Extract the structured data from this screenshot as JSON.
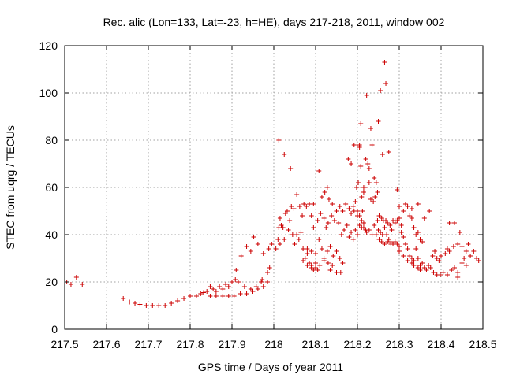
{
  "chart_data": {
    "type": "scatter",
    "title": "Rec. alic (Lon=133, Lat=-23, h=HE), days 217-218, 2011, window 002",
    "xlabel": "GPS time / Days of year 2011",
    "ylabel": "STEC from uqrg / TECUs",
    "xlim": [
      217.5,
      218.5
    ],
    "ylim": [
      0,
      120
    ],
    "xticks": [
      "217.5",
      "217.6",
      "217.7",
      "217.8",
      "217.9",
      "218",
      "218.1",
      "218.2",
      "218.3",
      "218.4",
      "218.5"
    ],
    "yticks": [
      "0",
      "20",
      "40",
      "60",
      "80",
      "100",
      "120"
    ],
    "grid": true,
    "marker": "+",
    "marker_color": "#cc0000",
    "points": [
      [
        217.505,
        20
      ],
      [
        217.515,
        19
      ],
      [
        217.528,
        22
      ],
      [
        217.542,
        19
      ],
      [
        217.64,
        13
      ],
      [
        217.655,
        11.5
      ],
      [
        217.668,
        11
      ],
      [
        217.68,
        10.5
      ],
      [
        217.695,
        10
      ],
      [
        217.71,
        10
      ],
      [
        217.725,
        10
      ],
      [
        217.74,
        10
      ],
      [
        217.755,
        11
      ],
      [
        217.77,
        12
      ],
      [
        217.785,
        13
      ],
      [
        217.8,
        14
      ],
      [
        217.815,
        14
      ],
      [
        217.825,
        15
      ],
      [
        217.832,
        15.5
      ],
      [
        217.84,
        16
      ],
      [
        217.848,
        18
      ],
      [
        217.855,
        17
      ],
      [
        217.862,
        16
      ],
      [
        217.87,
        18
      ],
      [
        217.878,
        17
      ],
      [
        217.885,
        19
      ],
      [
        217.892,
        18
      ],
      [
        217.9,
        20
      ],
      [
        217.908,
        21
      ],
      [
        217.915,
        20
      ],
      [
        217.848,
        14
      ],
      [
        217.862,
        14
      ],
      [
        217.878,
        14
      ],
      [
        217.892,
        14
      ],
      [
        217.905,
        14
      ],
      [
        217.92,
        15
      ],
      [
        217.935,
        15
      ],
      [
        217.95,
        16
      ],
      [
        217.962,
        17
      ],
      [
        217.975,
        18
      ],
      [
        217.985,
        20
      ],
      [
        217.93,
        18
      ],
      [
        217.945,
        17
      ],
      [
        217.958,
        18
      ],
      [
        217.972,
        21
      ],
      [
        217.985,
        24
      ],
      [
        217.91,
        25
      ],
      [
        217.922,
        31
      ],
      [
        217.935,
        35
      ],
      [
        217.945,
        33
      ],
      [
        217.952,
        39
      ],
      [
        217.962,
        36
      ],
      [
        217.975,
        32
      ],
      [
        217.988,
        34
      ],
      [
        217.995,
        36
      ],
      [
        217.97,
        20
      ],
      [
        217.99,
        26
      ],
      [
        218.005,
        34
      ],
      [
        218.01,
        38
      ],
      [
        218.012,
        43
      ],
      [
        218.015,
        47
      ],
      [
        218.018,
        44
      ],
      [
        218.022,
        43
      ],
      [
        218.028,
        49
      ],
      [
        218.032,
        50
      ],
      [
        218.038,
        46
      ],
      [
        218.042,
        52
      ],
      [
        218.048,
        51
      ],
      [
        218.055,
        57
      ],
      [
        218.062,
        52
      ],
      [
        218.068,
        48
      ],
      [
        218.072,
        53
      ],
      [
        218.078,
        52
      ],
      [
        218.085,
        53
      ],
      [
        218.09,
        48
      ],
      [
        218.095,
        53
      ],
      [
        218.012,
        80
      ],
      [
        218.025,
        74
      ],
      [
        218.04,
        68
      ],
      [
        218.015,
        36
      ],
      [
        218.025,
        38
      ],
      [
        218.035,
        42
      ],
      [
        218.045,
        40
      ],
      [
        218.05,
        36
      ],
      [
        218.055,
        40
      ],
      [
        218.06,
        38
      ],
      [
        218.065,
        41
      ],
      [
        218.07,
        34
      ],
      [
        218.075,
        30
      ],
      [
        218.08,
        32
      ],
      [
        218.085,
        28
      ],
      [
        218.09,
        26
      ],
      [
        218.095,
        25
      ],
      [
        218.1,
        26
      ],
      [
        218.105,
        25
      ],
      [
        218.07,
        29
      ],
      [
        218.08,
        27
      ],
      [
        218.09,
        27
      ],
      [
        218.1,
        28
      ],
      [
        218.11,
        27
      ],
      [
        218.12,
        29
      ],
      [
        218.13,
        28
      ],
      [
        218.135,
        25
      ],
      [
        218.14,
        27
      ],
      [
        218.15,
        24
      ],
      [
        218.16,
        24
      ],
      [
        218.08,
        34
      ],
      [
        218.09,
        33
      ],
      [
        218.1,
        32
      ],
      [
        218.108,
        38
      ],
      [
        218.115,
        34
      ],
      [
        218.12,
        30
      ],
      [
        218.128,
        33
      ],
      [
        218.135,
        35
      ],
      [
        218.142,
        31
      ],
      [
        218.15,
        33
      ],
      [
        218.158,
        30
      ],
      [
        218.165,
        28
      ],
      [
        218.095,
        43
      ],
      [
        218.105,
        46
      ],
      [
        218.112,
        49
      ],
      [
        218.12,
        47
      ],
      [
        218.125,
        43
      ],
      [
        218.13,
        45
      ],
      [
        218.138,
        48
      ],
      [
        218.145,
        46
      ],
      [
        218.15,
        50
      ],
      [
        218.158,
        52
      ],
      [
        218.165,
        50
      ],
      [
        218.172,
        53
      ],
      [
        218.18,
        51
      ],
      [
        218.185,
        49
      ],
      [
        218.19,
        52
      ],
      [
        218.195,
        54
      ],
      [
        218.2,
        50
      ],
      [
        218.205,
        48
      ],
      [
        218.21,
        46
      ],
      [
        218.108,
        67
      ],
      [
        218.115,
        56
      ],
      [
        218.122,
        58
      ],
      [
        218.128,
        60
      ],
      [
        218.132,
        55
      ],
      [
        218.14,
        53
      ],
      [
        218.155,
        45
      ],
      [
        218.162,
        40
      ],
      [
        218.168,
        42
      ],
      [
        218.175,
        44
      ],
      [
        218.18,
        39
      ],
      [
        218.185,
        41
      ],
      [
        218.19,
        38
      ],
      [
        218.195,
        42
      ],
      [
        218.2,
        40
      ],
      [
        218.205,
        44
      ],
      [
        218.21,
        43
      ],
      [
        218.215,
        45
      ],
      [
        218.22,
        42
      ],
      [
        218.178,
        72
      ],
      [
        218.185,
        70
      ],
      [
        218.192,
        78
      ],
      [
        218.198,
        60
      ],
      [
        218.202,
        62
      ],
      [
        218.205,
        77
      ],
      [
        218.208,
        69
      ],
      [
        218.21,
        56
      ],
      [
        218.215,
        58
      ],
      [
        218.218,
        60
      ],
      [
        218.22,
        72
      ],
      [
        218.225,
        70
      ],
      [
        218.228,
        62
      ],
      [
        218.232,
        85
      ],
      [
        218.235,
        78
      ],
      [
        218.24,
        64
      ],
      [
        218.245,
        62
      ],
      [
        218.248,
        58
      ],
      [
        218.25,
        88
      ],
      [
        218.255,
        101
      ],
      [
        218.26,
        74
      ],
      [
        218.265,
        113
      ],
      [
        218.268,
        104
      ],
      [
        218.275,
        75
      ],
      [
        218.192,
        50
      ],
      [
        218.2,
        48
      ],
      [
        218.205,
        78
      ],
      [
        218.208,
        87
      ],
      [
        218.212,
        50
      ],
      [
        218.215,
        60
      ],
      [
        218.222,
        99
      ],
      [
        218.228,
        68
      ],
      [
        218.232,
        55
      ],
      [
        218.238,
        54
      ],
      [
        218.242,
        56
      ],
      [
        218.248,
        46
      ],
      [
        218.252,
        48
      ],
      [
        218.258,
        47
      ],
      [
        218.262,
        46
      ],
      [
        218.268,
        46
      ],
      [
        218.272,
        45
      ],
      [
        218.278,
        44
      ],
      [
        218.285,
        46
      ],
      [
        218.29,
        46
      ],
      [
        218.215,
        43
      ],
      [
        218.222,
        41
      ],
      [
        218.228,
        42
      ],
      [
        218.235,
        40
      ],
      [
        218.24,
        44
      ],
      [
        218.245,
        40
      ],
      [
        218.25,
        42
      ],
      [
        218.255,
        41
      ],
      [
        218.26,
        40
      ],
      [
        218.265,
        43
      ],
      [
        218.27,
        40
      ],
      [
        218.275,
        38
      ],
      [
        218.28,
        37
      ],
      [
        218.285,
        36
      ],
      [
        218.29,
        37
      ],
      [
        218.295,
        36
      ],
      [
        218.3,
        35
      ],
      [
        218.252,
        38
      ],
      [
        218.258,
        37
      ],
      [
        218.265,
        36
      ],
      [
        218.272,
        37
      ],
      [
        218.28,
        36
      ],
      [
        218.282,
        42
      ],
      [
        218.29,
        45
      ],
      [
        218.295,
        46
      ],
      [
        218.3,
        47
      ],
      [
        218.305,
        44
      ],
      [
        218.31,
        50
      ],
      [
        218.315,
        53
      ],
      [
        218.32,
        52
      ],
      [
        218.325,
        48
      ],
      [
        218.33,
        47
      ],
      [
        218.335,
        43
      ],
      [
        218.34,
        40
      ],
      [
        218.345,
        41
      ],
      [
        218.35,
        38
      ],
      [
        218.355,
        37
      ],
      [
        218.295,
        59
      ],
      [
        218.3,
        52
      ],
      [
        218.305,
        41
      ],
      [
        218.31,
        39
      ],
      [
        218.315,
        36
      ],
      [
        218.32,
        34
      ],
      [
        218.325,
        31
      ],
      [
        218.33,
        30
      ],
      [
        218.335,
        29
      ],
      [
        218.34,
        34
      ],
      [
        218.345,
        30
      ],
      [
        218.35,
        27
      ],
      [
        218.355,
        28
      ],
      [
        218.36,
        26
      ],
      [
        218.365,
        25
      ],
      [
        218.37,
        27
      ],
      [
        218.3,
        33
      ],
      [
        218.31,
        31
      ],
      [
        218.32,
        29
      ],
      [
        218.33,
        28
      ],
      [
        218.335,
        27
      ],
      [
        218.345,
        26
      ],
      [
        218.35,
        25
      ],
      [
        218.33,
        51
      ],
      [
        218.345,
        53
      ],
      [
        218.36,
        47
      ],
      [
        218.372,
        50
      ],
      [
        218.38,
        31
      ],
      [
        218.385,
        33
      ],
      [
        218.39,
        30
      ],
      [
        218.395,
        29
      ],
      [
        218.4,
        31
      ],
      [
        218.41,
        32
      ],
      [
        218.415,
        34
      ],
      [
        218.42,
        33
      ],
      [
        218.43,
        35
      ],
      [
        218.44,
        36
      ],
      [
        218.45,
        35
      ],
      [
        218.46,
        33
      ],
      [
        218.375,
        26
      ],
      [
        218.382,
        24
      ],
      [
        218.39,
        23
      ],
      [
        218.398,
        23
      ],
      [
        218.405,
        24
      ],
      [
        218.415,
        23
      ],
      [
        218.425,
        25
      ],
      [
        218.432,
        26
      ],
      [
        218.44,
        24
      ],
      [
        218.42,
        45
      ],
      [
        218.432,
        45
      ],
      [
        218.445,
        41
      ],
      [
        218.455,
        30
      ],
      [
        218.465,
        36
      ],
      [
        218.47,
        31
      ],
      [
        218.478,
        33
      ],
      [
        218.485,
        30
      ],
      [
        218.49,
        29
      ],
      [
        218.44,
        22
      ],
      [
        218.45,
        28
      ],
      [
        218.46,
        27
      ]
    ]
  }
}
